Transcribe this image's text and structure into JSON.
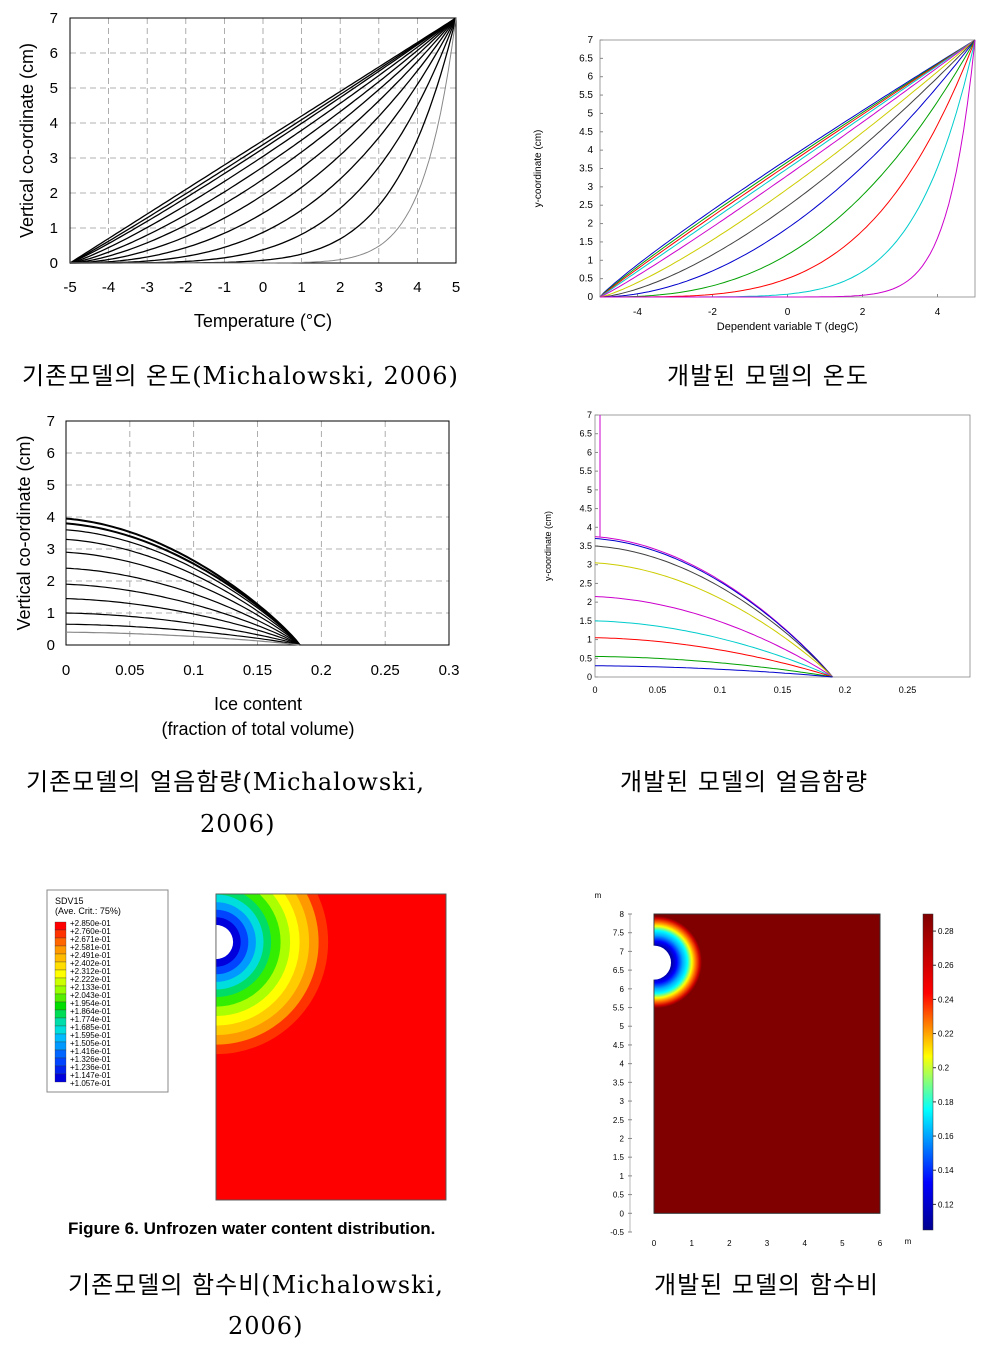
{
  "captions": {
    "c1": "기존모델의 온도(Michalowski, 2006)",
    "c2": "개발된 모델의 온도",
    "c3a": "기존모델의 얼음함량(Michalowski,",
    "c3b": "2006)",
    "c4": "개발된 모델의 얼음함량",
    "c5a": "기존모델의 함수비(Michalowski,",
    "c5b": "2006)",
    "c6": "개발된 모델의 함수비",
    "figure6": "Figure 6.  Unfrozen water content distribution."
  },
  "chart_data": [
    {
      "id": "temp_existing",
      "type": "line",
      "xlabel": "Temperature (°C)",
      "ylabel": "Vertical co-ordinate (cm)",
      "xlim": [
        -5,
        5
      ],
      "ylim": [
        0,
        7
      ],
      "xticks": [
        "-5",
        "-4",
        "-3",
        "-2",
        "-1",
        "0",
        "1",
        "2",
        "3",
        "4",
        "5"
      ],
      "yticks": [
        "0",
        "1",
        "2",
        "3",
        "4",
        "5",
        "6",
        "7"
      ],
      "grid": true,
      "series_exponents": [
        1.0,
        1.05,
        1.1,
        1.2,
        1.35,
        1.55,
        1.85,
        2.3,
        3.0,
        4.2,
        6.5,
        12
      ]
    },
    {
      "id": "temp_developed",
      "type": "line",
      "xlabel": "Dependent variable T (degC)",
      "ylabel": "y-coordinate (cm)",
      "xlim": [
        -5,
        5
      ],
      "ylim": [
        0,
        7
      ],
      "xticks": [
        "-4",
        "-2",
        "0",
        "2",
        "4"
      ],
      "yticks": [
        "0",
        "0.5",
        "1",
        "1.5",
        "2",
        "2.5",
        "3",
        "3.5",
        "4",
        "4.5",
        "5",
        "5.5",
        "6",
        "6.5",
        "7"
      ],
      "grid": false,
      "series_exponents": [
        0.9,
        0.93,
        0.96,
        1.0,
        1.08,
        1.25,
        1.5,
        1.9,
        2.6,
        3.8,
        6.5,
        14
      ],
      "series_colors": [
        "#0000cc",
        "#00a000",
        "#ff0000",
        "#00cccc",
        "#cc00cc",
        "#cccc00",
        "#404040",
        "#0000cc",
        "#00a000",
        "#ff0000",
        "#00cccc",
        "#cc00cc"
      ]
    },
    {
      "id": "ice_existing",
      "type": "line",
      "xlabel": "Ice content",
      "xlabel2": "(fraction of total volume)",
      "ylabel": "Vertical co-ordinate (cm)",
      "xlim": [
        0,
        0.3
      ],
      "ylim": [
        0,
        7
      ],
      "xticks": [
        "0",
        "0.05",
        "0.1",
        "0.15",
        "0.2",
        "0.25",
        "0.3"
      ],
      "yticks": [
        "0",
        "1",
        "2",
        "3",
        "4",
        "5",
        "6",
        "7"
      ],
      "grid": true,
      "x_end": 0.183,
      "front_heights": [
        3.95,
        3.8,
        3.6,
        3.3,
        2.9,
        2.4,
        1.9,
        1.45,
        1.0,
        0.65,
        0.4
      ]
    },
    {
      "id": "ice_developed",
      "type": "line",
      "xlabel": "",
      "ylabel": "y-coordinate (cm)",
      "xlim": [
        0,
        0.3
      ],
      "ylim": [
        0,
        7
      ],
      "xticks": [
        "0",
        "0.05",
        "0.1",
        "0.15",
        "0.2",
        "0.25"
      ],
      "yticks": [
        "0",
        "0.5",
        "1",
        "1.5",
        "2",
        "2.5",
        "3",
        "3.5",
        "4",
        "4.5",
        "5",
        "5.5",
        "6",
        "6.5",
        "7"
      ],
      "grid": false,
      "x_end": 0.19,
      "front_heights": [
        3.75,
        3.7,
        3.5,
        3.05,
        2.15,
        1.5,
        1.05,
        0.55,
        0.3
      ],
      "series_colors": [
        "#cc00cc",
        "#0000cc",
        "#404040",
        "#cccc00",
        "#cc00cc",
        "#00cccc",
        "#ff0000",
        "#00a000",
        "#0000cc"
      ]
    },
    {
      "id": "water_existing",
      "type": "heatmap",
      "legend_title": "SDV15",
      "legend_subtitle": "(Ave. Crit.: 75%)",
      "legend_values": [
        "+2.850e-01",
        "+2.760e-01",
        "+2.671e-01",
        "+2.581e-01",
        "+2.491e-01",
        "+2.402e-01",
        "+2.312e-01",
        "+2.222e-01",
        "+2.133e-01",
        "+2.043e-01",
        "+1.954e-01",
        "+1.864e-01",
        "+1.774e-01",
        "+1.685e-01",
        "+1.595e-01",
        "+1.505e-01",
        "+1.416e-01",
        "+1.326e-01",
        "+1.236e-01",
        "+1.147e-01",
        "+1.057e-01"
      ],
      "legend_colors": [
        "#ff0000",
        "#ff3300",
        "#ff6600",
        "#ff9900",
        "#ffbb00",
        "#ffdd00",
        "#ffff00",
        "#ccff00",
        "#99ff00",
        "#55ee00",
        "#00dd00",
        "#00dd55",
        "#00ddaa",
        "#00dddd",
        "#00bbff",
        "#0099ff",
        "#0066ff",
        "#0044ff",
        "#0022ee",
        "#0000dd",
        "#0000aa"
      ]
    },
    {
      "id": "water_developed",
      "type": "heatmap",
      "axis_unit": "m",
      "xticks": [
        "0",
        "1",
        "2",
        "3",
        "4",
        "5",
        "6"
      ],
      "yticks": [
        "-0.5",
        "0",
        "0.5",
        "1",
        "1.5",
        "2",
        "2.5",
        "3",
        "3.5",
        "4",
        "4.5",
        "5",
        "5.5",
        "6",
        "6.5",
        "7",
        "7.5",
        "8"
      ],
      "colorbar_ticks": [
        "0.28",
        "0.26",
        "0.24",
        "0.22",
        "0.2",
        "0.18",
        "0.16",
        "0.14",
        "0.12"
      ]
    }
  ]
}
